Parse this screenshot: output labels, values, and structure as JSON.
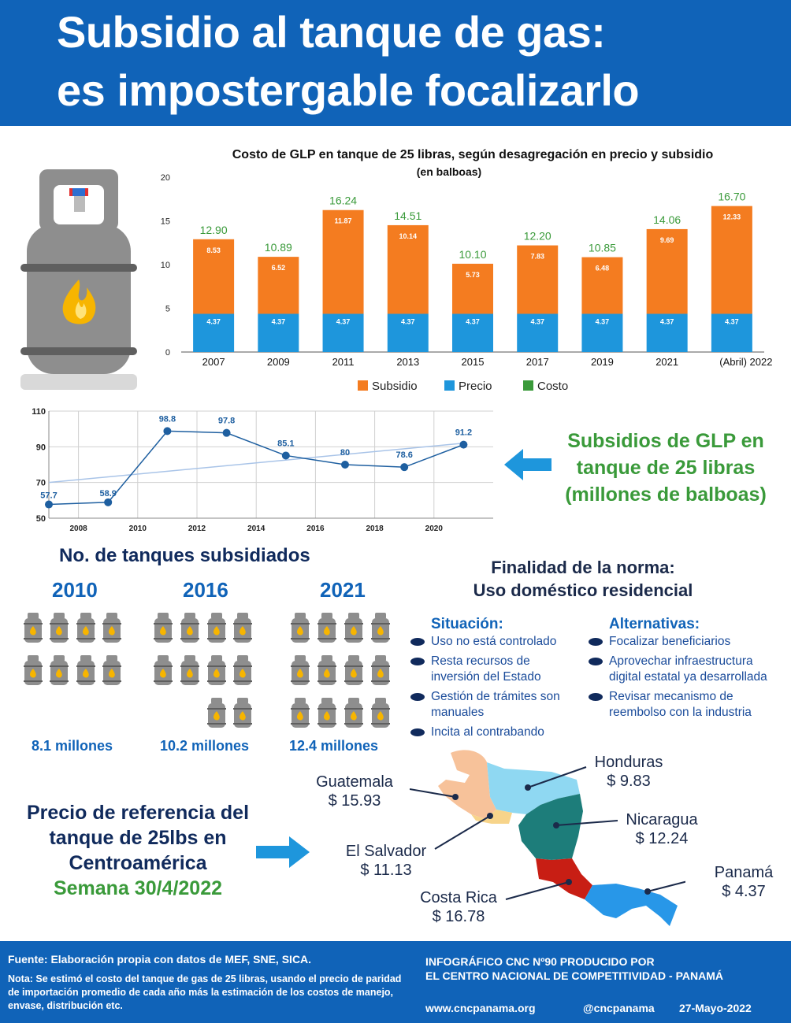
{
  "header": {
    "title_line1": "Subsidio al tanque de gas:",
    "title_line2": "es impostergable focalizarlo"
  },
  "chart_data": [
    {
      "type": "bar",
      "title": "Costo de GLP en tanque de 25 libras, según desagregación en precio y subsidio",
      "subtitle": "(en balboas)",
      "categories": [
        "2007",
        "2009",
        "2011",
        "2013",
        "2015",
        "2017",
        "2019",
        "2021",
        "(Abril) 2022"
      ],
      "series": [
        {
          "name": "Subsidio",
          "color": "#f47c20",
          "values": [
            8.53,
            6.52,
            11.87,
            10.14,
            5.73,
            7.83,
            6.48,
            9.69,
            12.33
          ]
        },
        {
          "name": "Precio",
          "color": "#1e96dc",
          "values": [
            4.37,
            4.37,
            4.37,
            4.37,
            4.37,
            4.37,
            4.37,
            4.37,
            4.37
          ]
        },
        {
          "name": "Costo",
          "color": "#3a9a3a",
          "values": [
            "12.90",
            "10.89",
            "16.24",
            "14.51",
            "10.10",
            "12.20",
            "10.85",
            "14.06",
            "16.70"
          ]
        }
      ],
      "stacked": true,
      "ylim": [
        0,
        20
      ],
      "yticks": [
        0,
        5,
        10,
        15,
        20
      ],
      "legend": "bottom"
    },
    {
      "type": "line",
      "x": [
        2007,
        2009,
        2011,
        2013,
        2015,
        2017,
        2019,
        2021
      ],
      "series": [
        {
          "values": [
            57.7,
            58.9,
            98.8,
            97.8,
            85.1,
            80,
            78.6,
            91.2
          ],
          "color": "#1e5fa0"
        }
      ],
      "trendline": true,
      "xlim": [
        2007,
        2022
      ],
      "xticks": [
        2008,
        2010,
        2012,
        2014,
        2016,
        2018,
        2020
      ],
      "ylim": [
        50,
        110
      ],
      "yticks": [
        50,
        70,
        90,
        110
      ],
      "grid": true,
      "caption": "Subsidios de GLP en tanque de 25 libras (millones de balboas)"
    }
  ],
  "tanks": {
    "title": "No. de tanques subsidiados",
    "groups": [
      {
        "year": "2010",
        "count_label": "8.1 millones",
        "icons": 8
      },
      {
        "year": "2016",
        "count_label": "10.2 millones",
        "icons": 10
      },
      {
        "year": "2021",
        "count_label": "12.4 millones",
        "icons": 12
      }
    ]
  },
  "norma": {
    "title_line1": "Finalidad de la norma:",
    "title_line2": "Uso doméstico residencial",
    "situacion_title": "Situación:",
    "situacion": [
      "Uso no está controlado",
      "Resta recursos de inversión del Estado",
      "Gestión de trámites son manuales",
      "Incita al contrabando"
    ],
    "alternativas_title": "Alternativas:",
    "alternativas": [
      "Focalizar beneficiarios",
      "Aprovechar infraestructura digital estatal ya desarrollada",
      "Revisar mecanismo de reembolso con la industria"
    ]
  },
  "referencia": {
    "title_line1": "Precio de referencia del",
    "title_line2": "tanque de 25lbs en",
    "title_line3": "Centroamérica",
    "semana": "Semana 30/4/2022"
  },
  "countries": [
    {
      "name": "Guatemala",
      "price": "$ 15.93",
      "color": "#f7c29a"
    },
    {
      "name": "Honduras",
      "price": "$ 9.83",
      "color": "#8fd8f2"
    },
    {
      "name": "El Salvador",
      "price": "$ 11.13",
      "color": "#f7d48a"
    },
    {
      "name": "Nicaragua",
      "price": "$ 12.24",
      "color": "#1d7d7a"
    },
    {
      "name": "Costa Rica",
      "price": "$ 16.78",
      "color": "#c81e14"
    },
    {
      "name": "Panamá",
      "price": "$ 4.37",
      "color": "#2897e8"
    }
  ],
  "footer": {
    "fuente": "Fuente: Elaboración propia con datos de MEF, SNE, SICA.",
    "nota": "Nota: Se estimó el costo del tanque de gas de 25 libras, usando el precio de paridad de importación promedio de cada año más la estimación de los costos de manejo, envase, distribución etc.",
    "producido_line1": "INFOGRÁFICO CNC Nº90 PRODUCIDO POR",
    "producido_line2": "EL CENTRO NACIONAL DE COMPETITIVIDAD - PANAMÁ",
    "website": "www.cncpanama.org",
    "handle": "@cncpanama",
    "date": "27-Mayo-2022"
  }
}
